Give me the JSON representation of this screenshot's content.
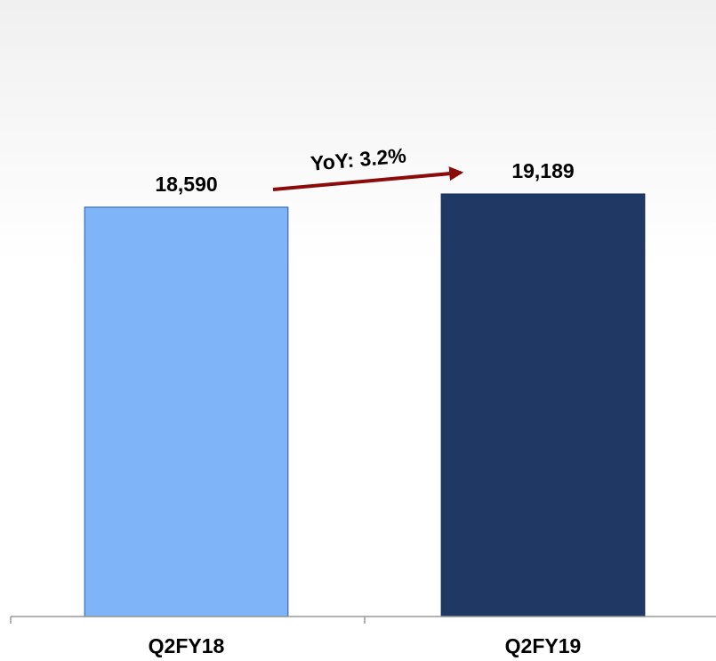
{
  "chart_data": {
    "type": "bar",
    "categories": [
      "Q2FY18",
      "Q2FY19"
    ],
    "values": [
      18590,
      19189
    ],
    "value_labels": [
      "18,590",
      "19,189"
    ],
    "colors": [
      "#80b4f8",
      "#203864"
    ],
    "ylim": [
      0,
      28000
    ],
    "annotations": [
      "YoY: 3.2%"
    ]
  }
}
